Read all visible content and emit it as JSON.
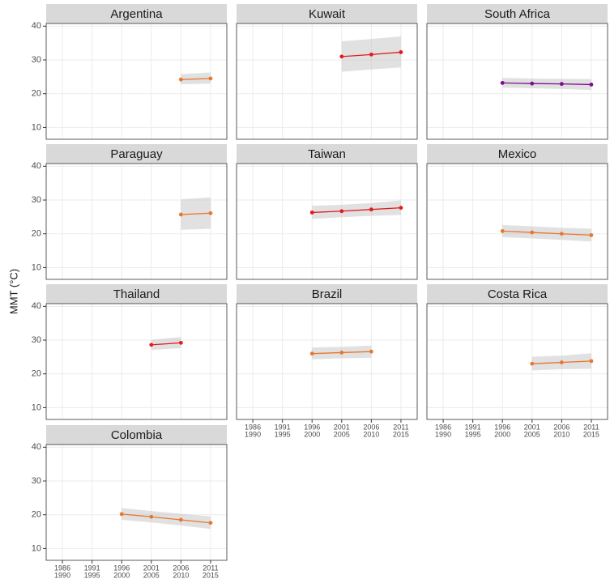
{
  "chart_data": {
    "type": "line",
    "y_label": "MMT (°C)",
    "categories": [
      [
        "1986",
        "1990"
      ],
      [
        "1991",
        "1995"
      ],
      [
        "1996",
        "2000"
      ],
      [
        "2001",
        "2005"
      ],
      [
        "2006",
        "2010"
      ],
      [
        "2011",
        "2015"
      ]
    ],
    "ylim": [
      6.5,
      40.8
    ],
    "yticks": [
      10,
      20,
      30,
      40
    ],
    "grid": true,
    "panels": [
      {
        "title": "Argentina",
        "color": "#e8772e",
        "values": [
          null,
          null,
          null,
          null,
          24.2,
          24.5
        ],
        "lower": [
          null,
          null,
          null,
          null,
          22.8,
          23.0
        ],
        "upper": [
          null,
          null,
          null,
          null,
          25.8,
          26.3
        ]
      },
      {
        "title": "Kuwait",
        "color": "#e41a1c",
        "values": [
          null,
          null,
          null,
          31.0,
          31.6,
          32.3
        ],
        "lower": [
          null,
          null,
          null,
          26.5,
          27.2,
          27.8
        ],
        "upper": [
          null,
          null,
          null,
          35.5,
          36.2,
          37.0
        ]
      },
      {
        "title": "South Africa",
        "color": "#7b0f8e",
        "values": [
          null,
          null,
          23.2,
          23.0,
          22.9,
          22.7
        ],
        "lower": [
          null,
          null,
          21.8,
          21.6,
          21.4,
          21.1
        ],
        "upper": [
          null,
          null,
          24.7,
          24.5,
          24.4,
          24.3
        ]
      },
      {
        "title": "Paraguay",
        "color": "#e8772e",
        "values": [
          null,
          null,
          null,
          null,
          25.7,
          26.1
        ],
        "lower": [
          null,
          null,
          null,
          null,
          21.2,
          21.5
        ],
        "upper": [
          null,
          null,
          null,
          null,
          30.2,
          30.8
        ]
      },
      {
        "title": "Taiwan",
        "color": "#e41a1c",
        "values": [
          null,
          null,
          26.3,
          26.7,
          27.2,
          27.7
        ],
        "lower": [
          null,
          null,
          24.4,
          24.9,
          25.3,
          25.6
        ],
        "upper": [
          null,
          null,
          28.3,
          28.6,
          29.1,
          29.9
        ]
      },
      {
        "title": "Mexico",
        "color": "#e8772e",
        "values": [
          null,
          null,
          20.8,
          20.4,
          20.0,
          19.6
        ],
        "lower": [
          null,
          null,
          19.0,
          18.6,
          18.2,
          17.7
        ],
        "upper": [
          null,
          null,
          22.6,
          22.2,
          21.8,
          21.5
        ]
      },
      {
        "title": "Thailand",
        "color": "#e41a1c",
        "values": [
          null,
          null,
          null,
          28.6,
          29.2,
          null
        ],
        "lower": [
          null,
          null,
          null,
          27.1,
          27.6,
          null
        ],
        "upper": [
          null,
          null,
          null,
          30.1,
          30.9,
          null
        ]
      },
      {
        "title": "Brazil",
        "color": "#e8772e",
        "values": [
          null,
          null,
          26.0,
          26.3,
          26.6,
          null
        ],
        "lower": [
          null,
          null,
          24.3,
          24.6,
          24.8,
          null
        ],
        "upper": [
          null,
          null,
          27.8,
          28.0,
          28.4,
          null
        ]
      },
      {
        "title": "Costa Rica",
        "color": "#e8772e",
        "values": [
          null,
          null,
          null,
          23.0,
          23.4,
          23.8
        ],
        "lower": [
          null,
          null,
          null,
          21.0,
          21.4,
          21.5
        ],
        "upper": [
          null,
          null,
          null,
          25.1,
          25.4,
          26.1
        ]
      },
      {
        "title": "Colombia",
        "color": "#e8772e",
        "values": [
          null,
          null,
          20.2,
          19.4,
          18.5,
          17.6
        ],
        "lower": [
          null,
          null,
          18.5,
          17.7,
          16.8,
          15.8
        ],
        "upper": [
          null,
          null,
          22.0,
          21.1,
          20.3,
          19.5
        ]
      }
    ]
  }
}
